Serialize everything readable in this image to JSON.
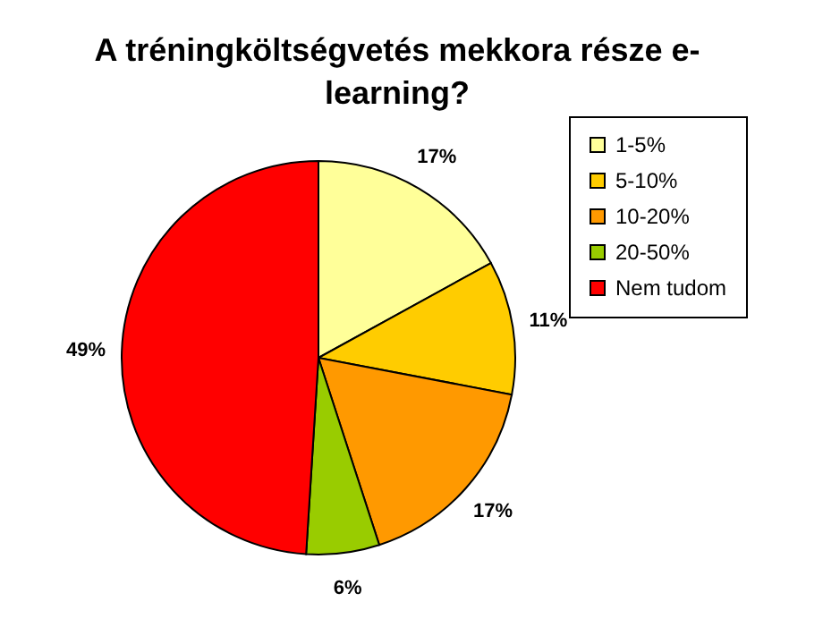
{
  "chart_data": {
    "type": "pie",
    "title": "A tréningköltségvetés mekkora része e-learning?",
    "categories": [
      "1-5%",
      "5-10%",
      "10-20%",
      "20-50%",
      "Nem tudom"
    ],
    "values": [
      17,
      11,
      17,
      6,
      49
    ],
    "colors": [
      "#ffff99",
      "#ffcc00",
      "#ff9900",
      "#99cc00",
      "#ff0000"
    ],
    "value_labels": [
      "17%",
      "11%",
      "17%",
      "6%",
      "49%"
    ],
    "legend": "right"
  }
}
